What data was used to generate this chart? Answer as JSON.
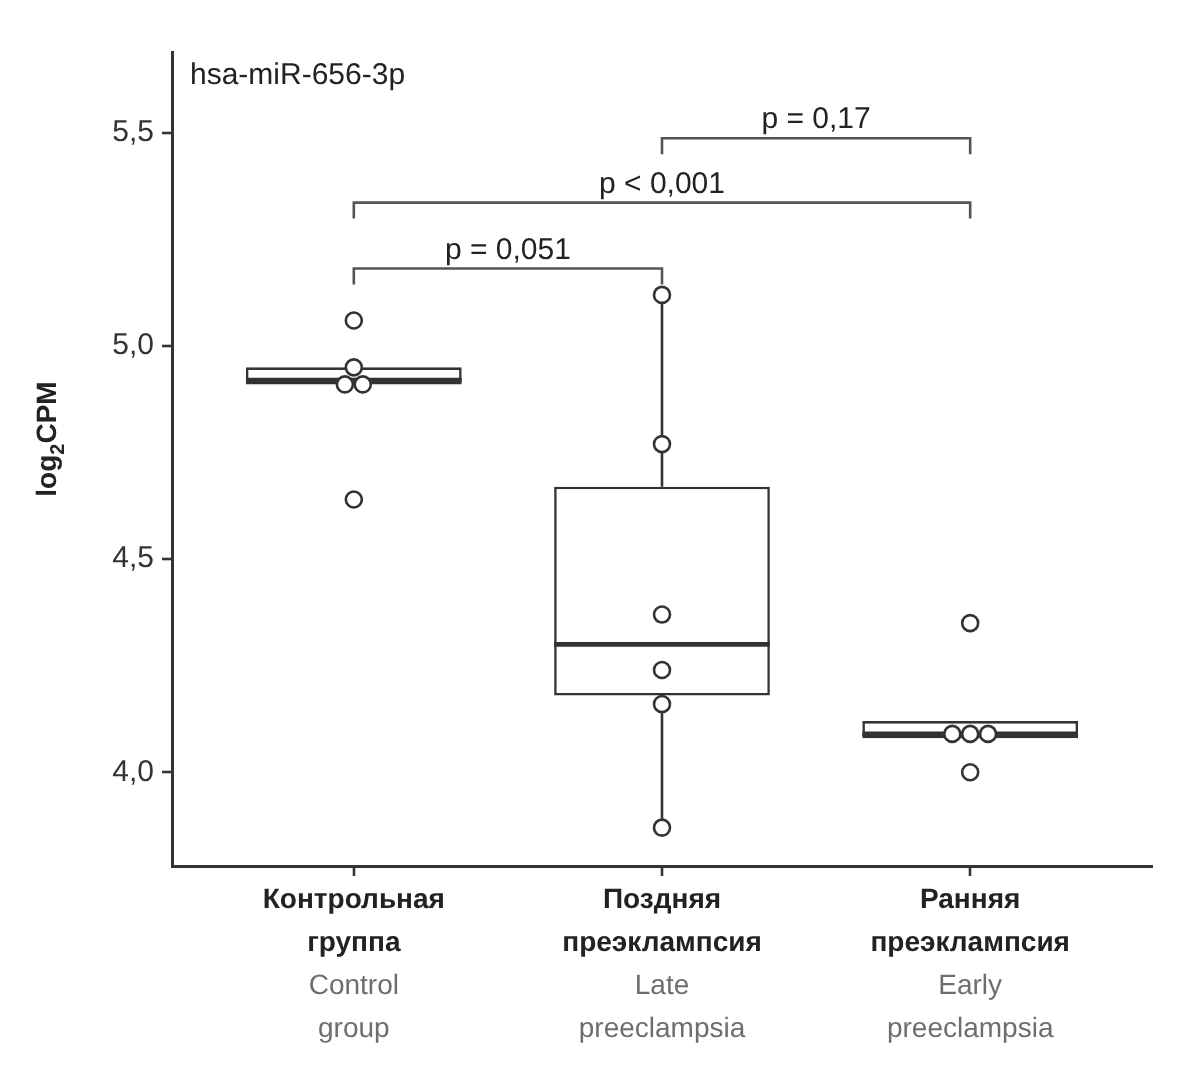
{
  "chart_data": {
    "type": "box",
    "title": "hsa-miR-656-3p",
    "ylabel": "log$_{2}$CPM",
    "categories": [
      "Контрольная группа\nControl group",
      "Поздняя преэклампсия\nLate preeclampsia",
      "Ранняя преэклампсия\nEarly preeclampsia"
    ],
    "ylim": [
      3.78,
      5.69
    ],
    "yticks": [
      {
        "value": 4,
        "label": "4,0"
      },
      {
        "value": 4.5,
        "label": "4,5"
      },
      {
        "value": 5,
        "label": "5,0"
      },
      {
        "value": 5.5,
        "label": "5,5"
      }
    ],
    "grid": false,
    "legend": false,
    "marker": "circle",
    "annotations": [
      "p = 0,051",
      "p < 0,001",
      "p = 0,17"
    ],
    "series": [
      {
        "type": "box",
        "color": "#333333",
        "boxes": [
          {
            "low": 4.91,
            "q1": 4.91,
            "median": 4.92,
            "q3": 4.95,
            "high": 4.95
          },
          {
            "low": 3.87,
            "q1": 4.18,
            "median": 4.3,
            "q3": 4.67,
            "high": 5.12
          },
          {
            "low": 4.08,
            "q1": 4.08,
            "median": 4.09,
            "q3": 4.12,
            "high": 4.12
          }
        ]
      },
      {
        "type": "scatter",
        "color": "#333333",
        "x": [
          "Контрольная группа\nControl group",
          "Контрольная группа\nControl group",
          "Контрольная группа\nControl group",
          "Контрольная группа\nControl group",
          "Контрольная группа\nControl group",
          "Поздняя преэклампсия\nLate preeclampsia",
          "Поздняя преэклампсия\nLate preeclampsia",
          "Поздняя преэклампсия\nLate preeclampsia",
          "Поздняя преэклампсия\nLate preeclampsia",
          "Поздняя преэклампсия\nLate preeclampsia",
          "Поздняя преэклампсия\nLate preeclampsia",
          "Ранняя преэклампсия\nEarly preeclampsia",
          "Ранняя преэклампсия\nEarly preeclampsia",
          "Ранняя преэклампсия\nEarly preeclampsia",
          "Ранняя преэклампсия\nEarly preeclampsia",
          "Ранняя преэклампсия\nEarly preeclampsia"
        ],
        "values": [
          5.06,
          4.95,
          4.91,
          4.91,
          4.64,
          5.12,
          4.77,
          4.37,
          4.24,
          4.16,
          3.87,
          4.35,
          4.09,
          4.09,
          4.09,
          4.0
        ]
      }
    ]
  }
}
